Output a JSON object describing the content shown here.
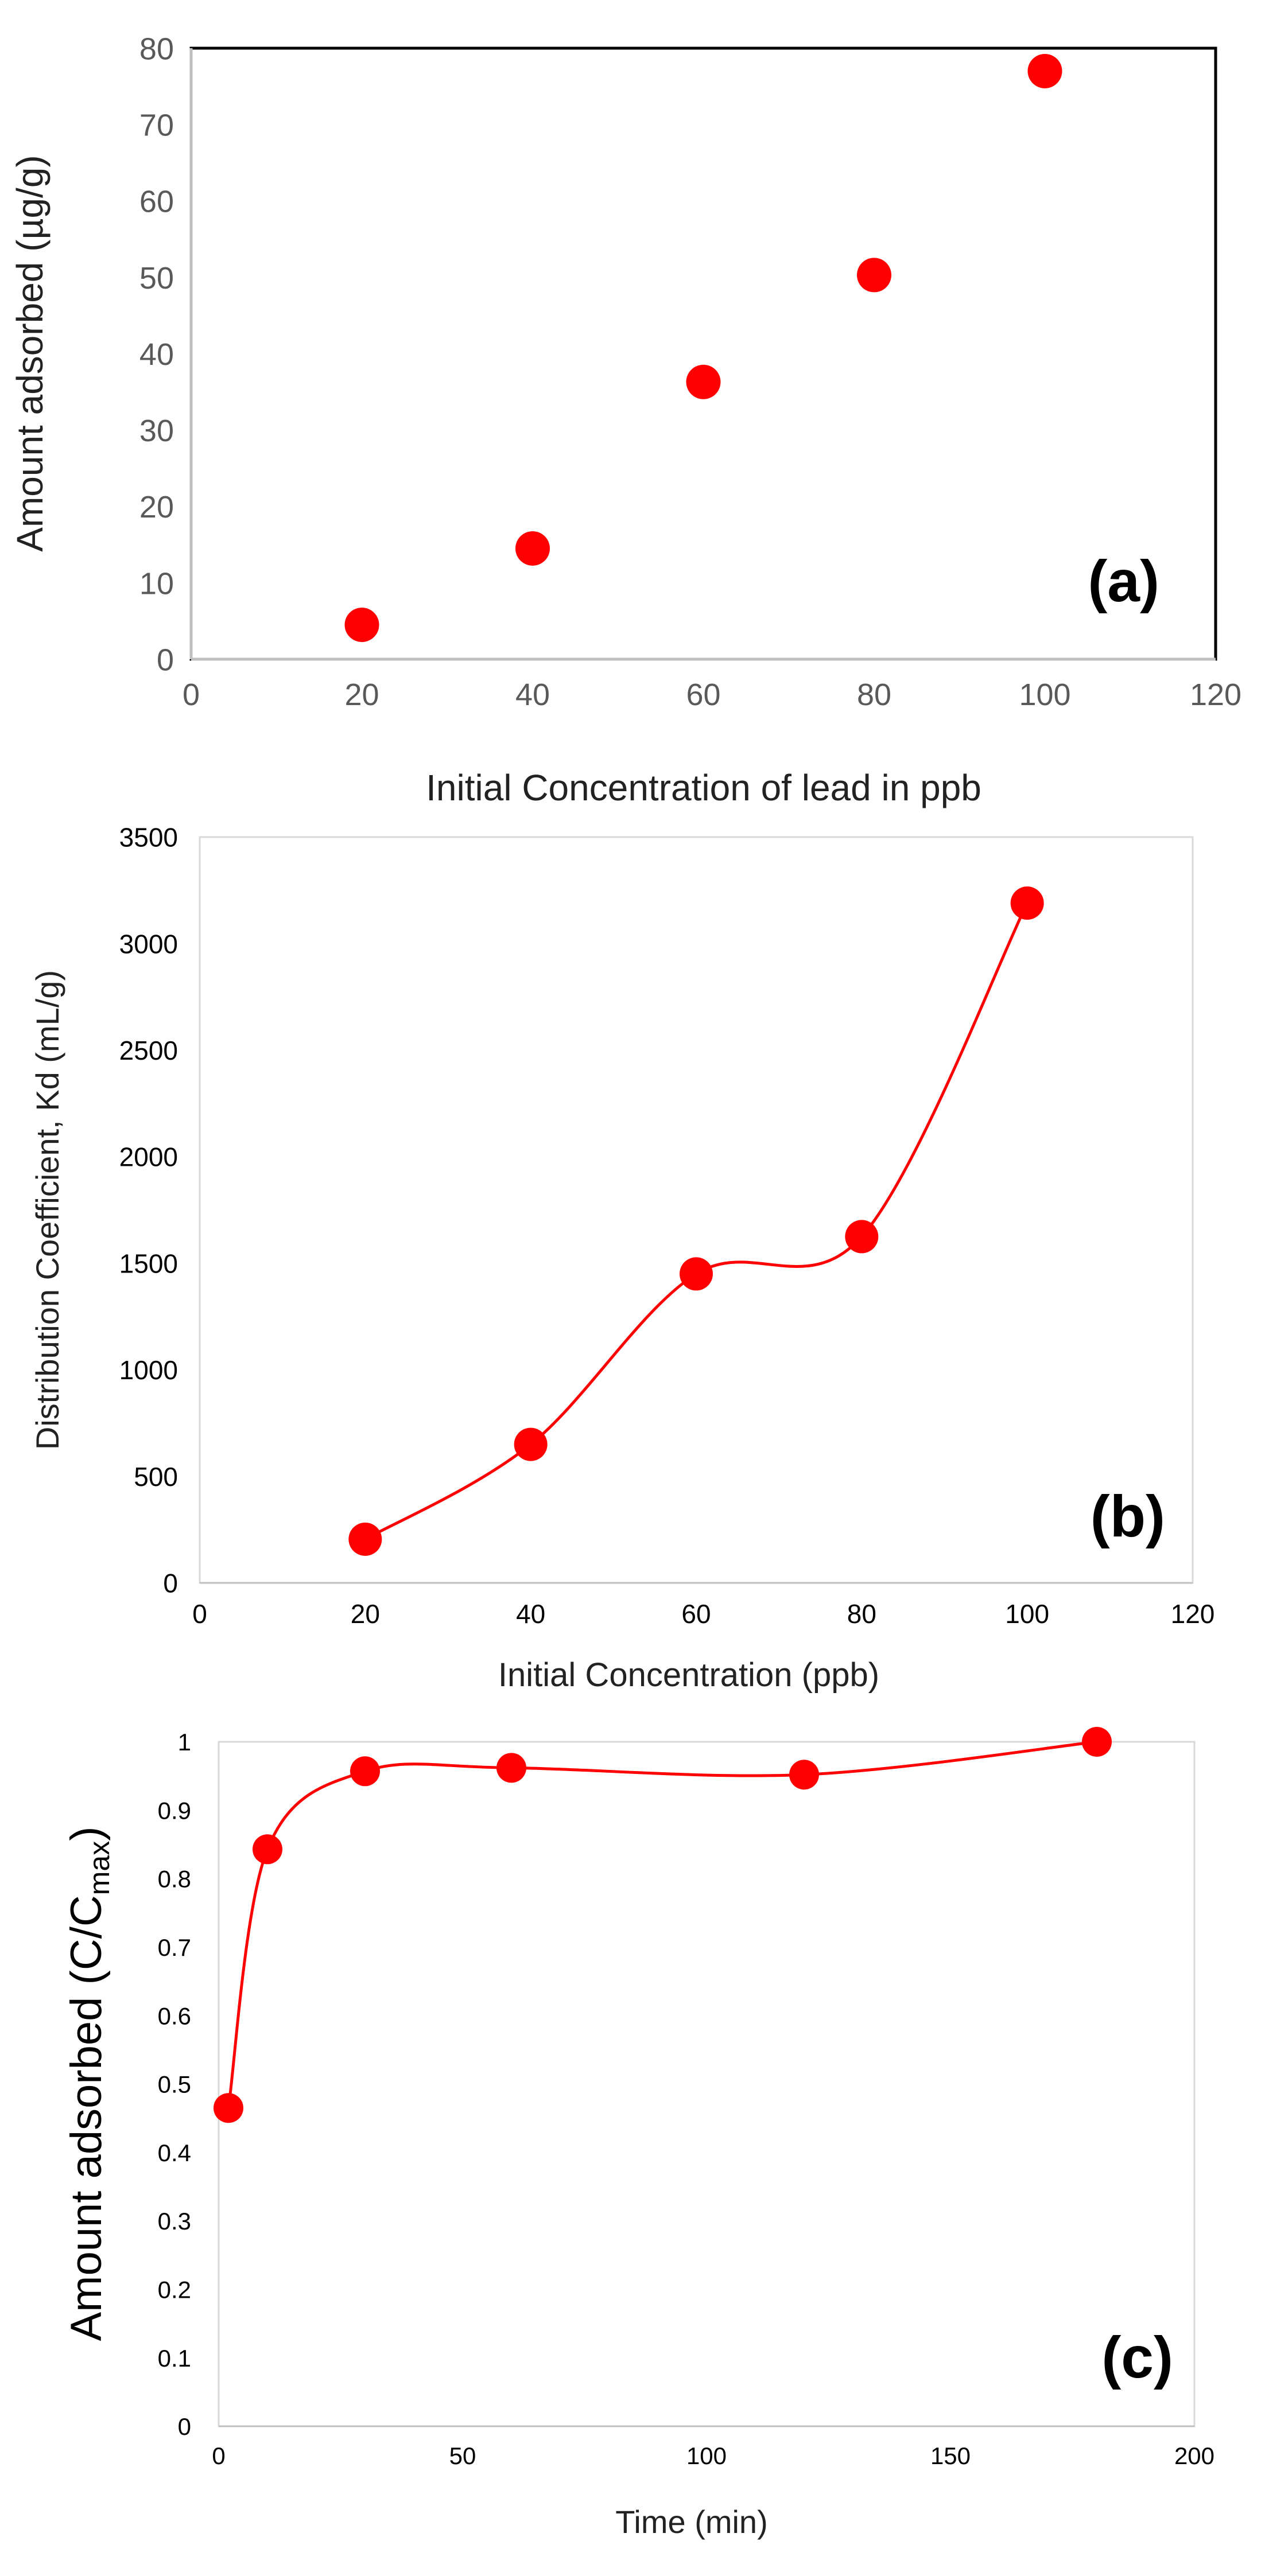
{
  "figure": {
    "panel_count": 3
  },
  "chart_data": [
    {
      "type": "scatter",
      "panel_label": "(a)",
      "title": "",
      "xlabel": "Initial Concentration of lead in ppb",
      "ylabel": "Amount adsorbed (µg/g)",
      "xlim": [
        0,
        120
      ],
      "ylim": [
        0,
        80
      ],
      "xticks": [
        0,
        20,
        40,
        60,
        80,
        100,
        120
      ],
      "yticks": [
        0,
        10,
        20,
        30,
        40,
        50,
        60,
        70,
        80
      ],
      "grid": false,
      "smooth_line": false,
      "series": [
        {
          "name": "Amount adsorbed",
          "color": "#ff0000",
          "x": [
            20,
            40,
            60,
            80,
            100
          ],
          "y": [
            4.5,
            14.5,
            36.3,
            50.3,
            77
          ]
        }
      ]
    },
    {
      "type": "line",
      "panel_label": "(b)",
      "title": "",
      "xlabel": "Initial Concentration (ppb)",
      "ylabel": "Distribution Coefficient, Kd (mL/g)",
      "xlim": [
        0,
        120
      ],
      "ylim": [
        0,
        3500
      ],
      "xticks": [
        0,
        20,
        40,
        60,
        80,
        100,
        120
      ],
      "yticks": [
        0,
        500,
        1000,
        1500,
        2000,
        2500,
        3000,
        3500
      ],
      "grid": false,
      "smooth_line": true,
      "series": [
        {
          "name": "Kd",
          "color": "#ff0000",
          "x": [
            20,
            40,
            60,
            80,
            100
          ],
          "y": [
            205,
            650,
            1450,
            1625,
            3190
          ]
        }
      ]
    },
    {
      "type": "line",
      "panel_label": "(c)",
      "title": "",
      "xlabel": "Time (min)",
      "ylabel": "Amount adsorbed (C/C",
      "ylabel_subscript": "max",
      "ylabel_suffix": ")",
      "xlim": [
        0,
        200
      ],
      "ylim": [
        0,
        1
      ],
      "xticks": [
        0,
        50,
        100,
        150,
        200
      ],
      "yticks": [
        0,
        0.1,
        0.2,
        0.3,
        0.4,
        0.5,
        0.6,
        0.7,
        0.8,
        0.9,
        1
      ],
      "grid": false,
      "smooth_line": true,
      "series": [
        {
          "name": "C/Cmax",
          "color": "#ff0000",
          "x": [
            2,
            10,
            30,
            60,
            120,
            180
          ],
          "y": [
            0.465,
            0.843,
            0.957,
            0.962,
            0.952,
            1.0
          ]
        }
      ]
    }
  ]
}
